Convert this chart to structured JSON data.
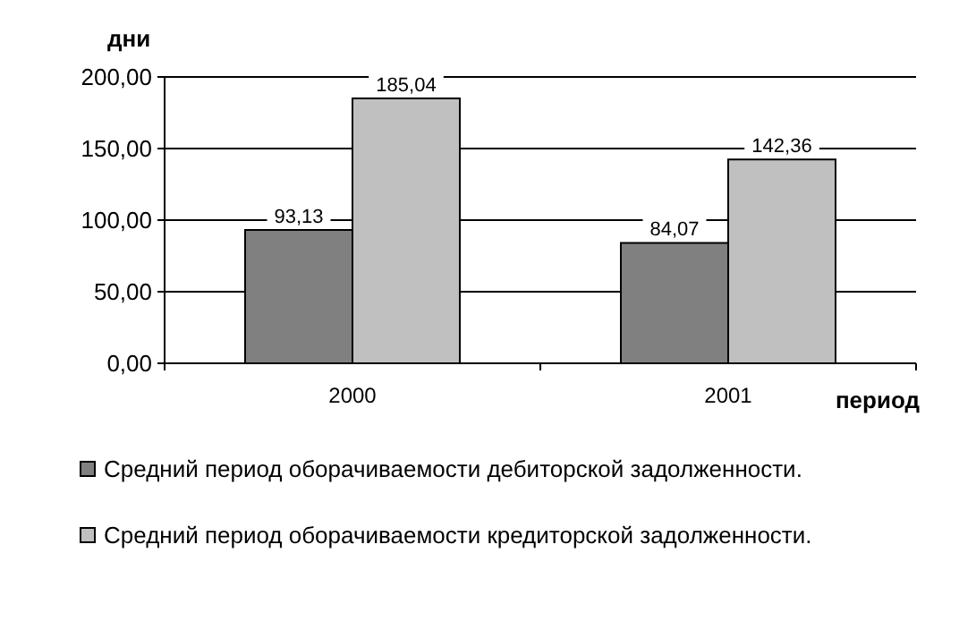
{
  "chart_data": {
    "type": "bar",
    "categories": [
      "2000",
      "2001"
    ],
    "series": [
      {
        "name": "Средний период оборачиваемости дебиторской задолженности.",
        "color": "#808080",
        "values": [
          93.13,
          84.07
        ],
        "value_labels": [
          "93,13",
          "84,07"
        ]
      },
      {
        "name": "Средний период оборачиваемости кредиторской задолженности.",
        "color": "#c0c0c0",
        "values": [
          185.04,
          142.36
        ],
        "value_labels": [
          "185,04",
          "142,36"
        ]
      }
    ],
    "ylim": [
      0,
      200
    ],
    "yticks": [
      {
        "value": 0,
        "label": "0,00"
      },
      {
        "value": 50,
        "label": "50,00"
      },
      {
        "value": 100,
        "label": "100,00"
      },
      {
        "value": 150,
        "label": "150,00"
      },
      {
        "value": 200,
        "label": "200,00"
      }
    ],
    "ylabel": "дни",
    "xlabel": "период",
    "grid": "y",
    "legend": "bottom"
  }
}
